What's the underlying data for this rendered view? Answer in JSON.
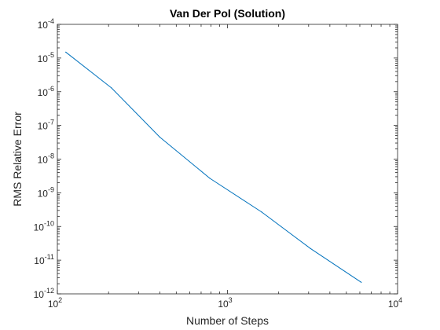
{
  "chart_data": {
    "type": "line",
    "title": "Van Der Pol (Solution)",
    "xlabel": "Number of Steps",
    "ylabel": "RMS Relative Error",
    "xscale": "log",
    "yscale": "log",
    "xlim": [
      100,
      10000
    ],
    "ylim": [
      1e-12,
      0.0001
    ],
    "grid": false,
    "x_ticks": [
      {
        "base": "10",
        "exp": "2",
        "value": 100
      },
      {
        "base": "10",
        "exp": "3",
        "value": 1000
      },
      {
        "base": "10",
        "exp": "4",
        "value": 10000
      }
    ],
    "y_ticks": [
      {
        "base": "10",
        "exp": "-12",
        "value": 1e-12
      },
      {
        "base": "10",
        "exp": "-11",
        "value": 1e-11
      },
      {
        "base": "10",
        "exp": "-10",
        "value": 1e-10
      },
      {
        "base": "10",
        "exp": "-9",
        "value": 1e-09
      },
      {
        "base": "10",
        "exp": "-8",
        "value": 1e-08
      },
      {
        "base": "10",
        "exp": "-7",
        "value": 1e-07
      },
      {
        "base": "10",
        "exp": "-6",
        "value": 1e-06
      },
      {
        "base": "10",
        "exp": "-5",
        "value": 1e-05
      },
      {
        "base": "10",
        "exp": "-4",
        "value": 0.0001
      }
    ],
    "series": [
      {
        "color": "#0072bd",
        "x": [
          112,
          208,
          400,
          787,
          1586,
          3082,
          6117
        ],
        "y": [
          1.5e-05,
          1.3e-06,
          4.5e-08,
          2.7e-09,
          2.7e-10,
          2.2e-11,
          2.2e-12
        ]
      }
    ]
  }
}
